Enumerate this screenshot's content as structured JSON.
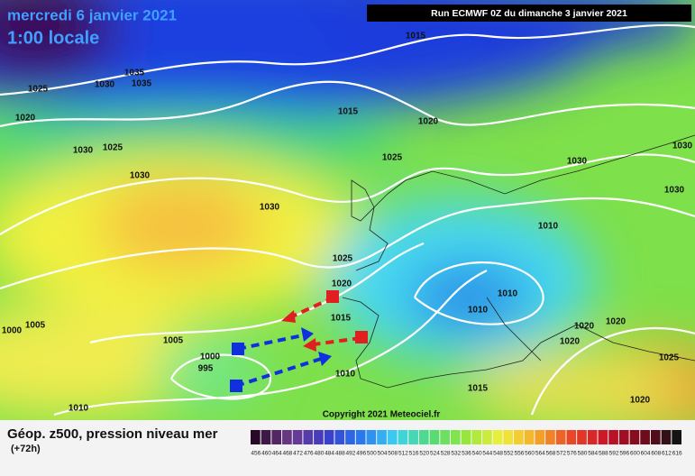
{
  "header": {
    "date": "mercredi 6 janvier 2021",
    "time": "1:00 locale",
    "run": "Run ECMWF 0Z du dimanche 3 janvier 2021"
  },
  "copyright": "Copyright 2021 Meteociel.fr",
  "footer": {
    "title": "Géop. z500, pression niveau mer",
    "lead": "(+72h)"
  },
  "isobars": [
    "1015",
    "1035",
    "1035",
    "1030",
    "1025",
    "1015",
    "1020",
    "1020",
    "1030",
    "1025",
    "1025",
    "1030",
    "1030",
    "1030",
    "1030",
    "1030",
    "1010",
    "1025",
    "1020",
    "1010",
    "1010",
    "1015",
    "1005",
    "1000",
    "1020",
    "1020",
    "1005",
    "1020",
    "1000",
    "995",
    "1010",
    "1025",
    "1015",
    "1020",
    "1010"
  ],
  "colorbar": [
    "456",
    "460",
    "464",
    "468",
    "472",
    "476",
    "480",
    "484",
    "488",
    "492",
    "496",
    "500",
    "504",
    "508",
    "512",
    "516",
    "520",
    "524",
    "528",
    "532",
    "536",
    "540",
    "544",
    "548",
    "552",
    "556",
    "560",
    "564",
    "568",
    "572",
    "576",
    "580",
    "584",
    "588",
    "592",
    "596",
    "600",
    "604",
    "608",
    "612",
    "616"
  ]
}
